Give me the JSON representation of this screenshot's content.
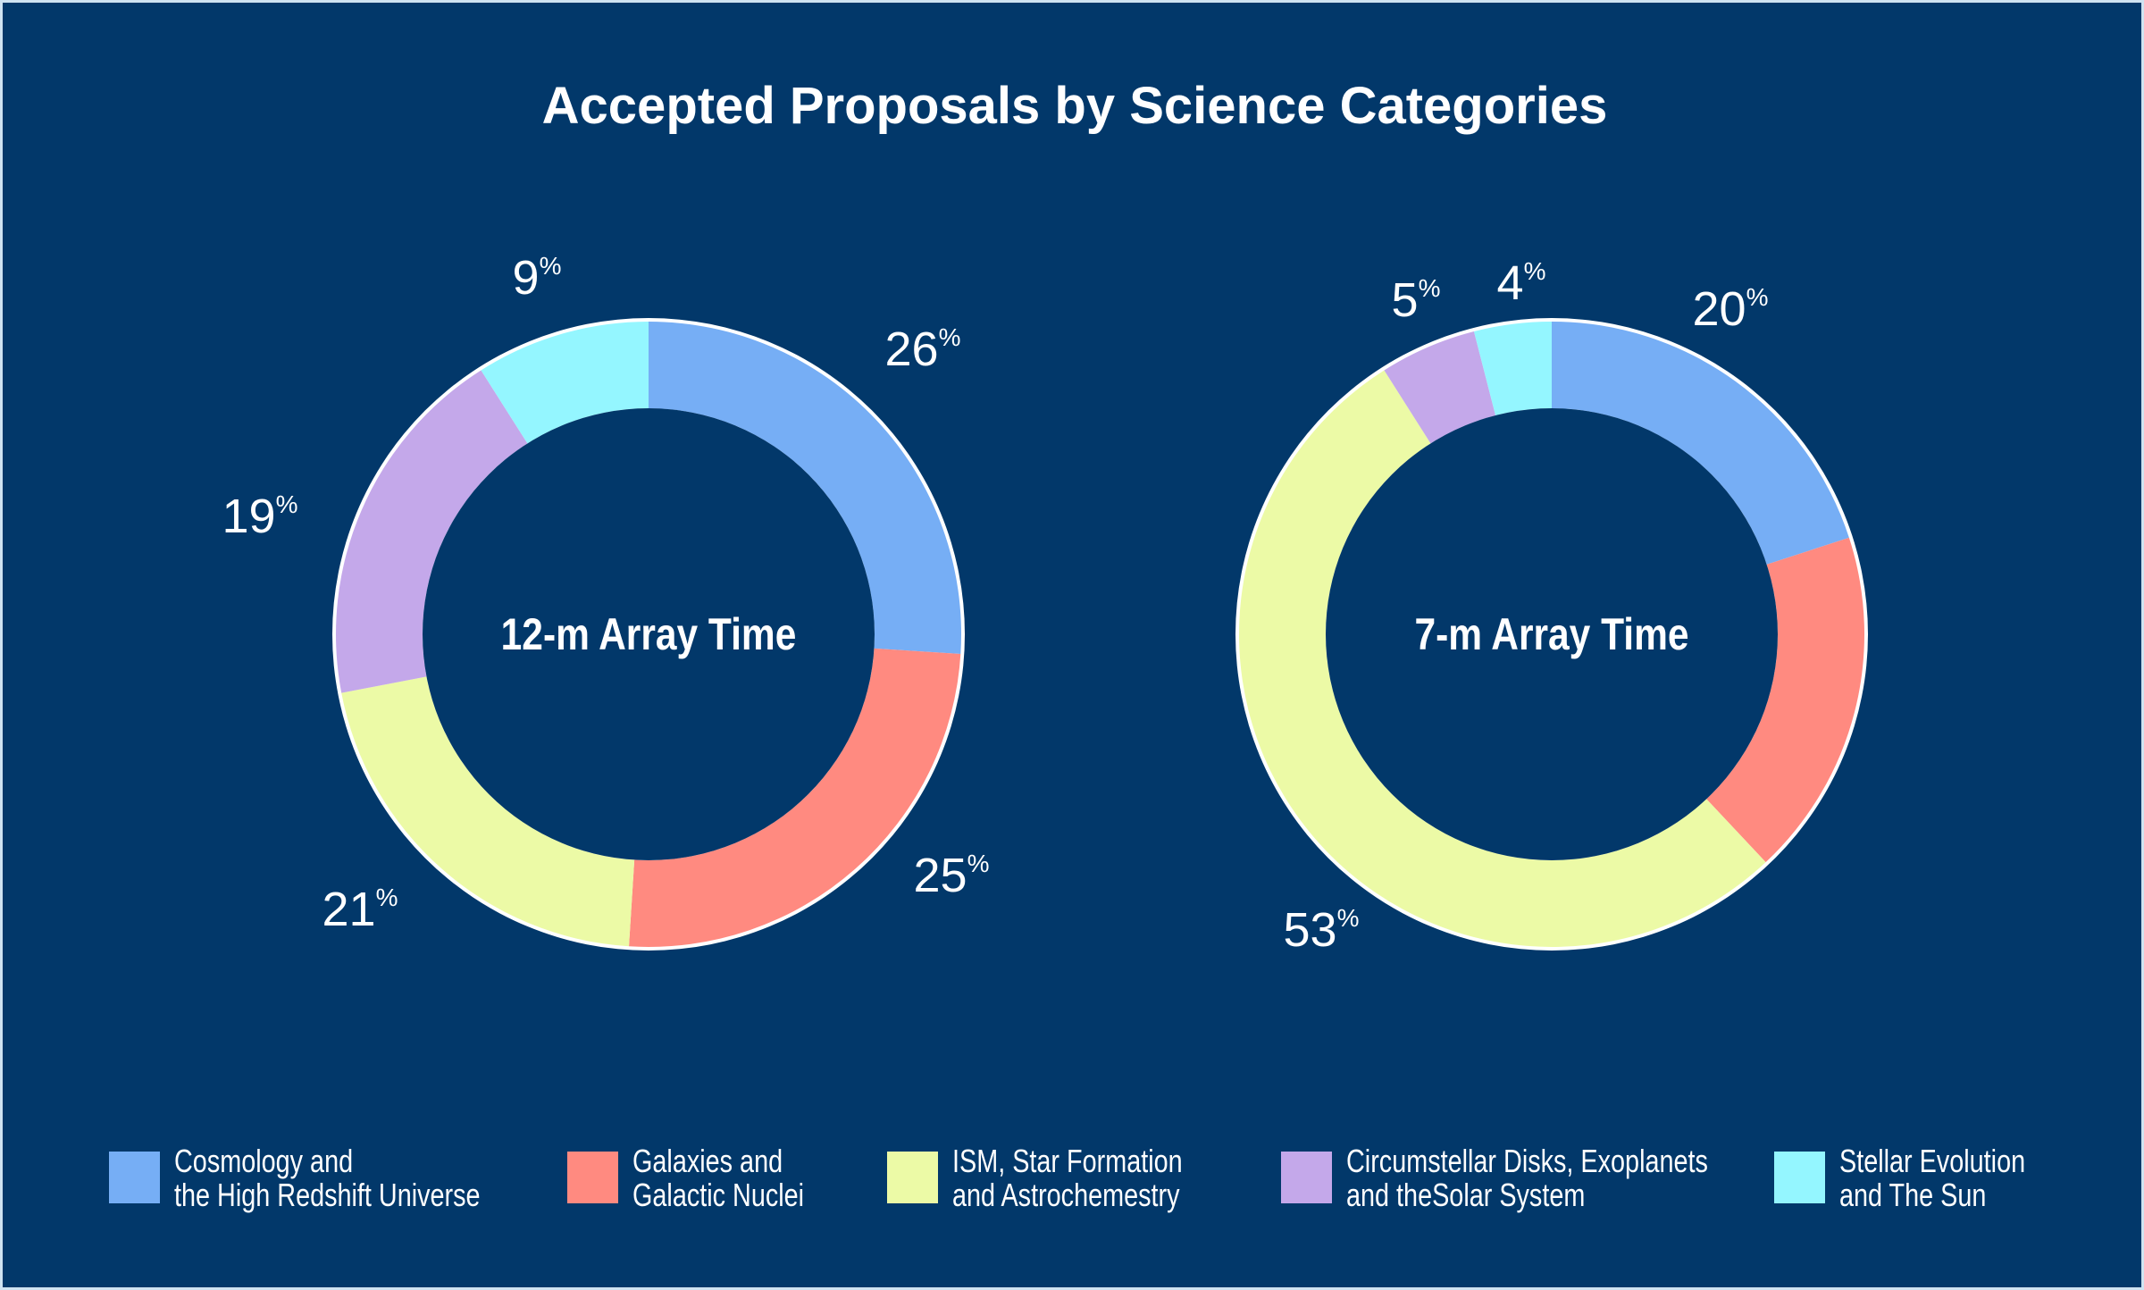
{
  "chart_data": [
    {
      "type": "pie",
      "title": "Accepted Proposals by Science Categories",
      "center_label": "12-m Array Time",
      "categories": [
        "Cosmology and the High Redshift Universe",
        "Galaxies and Galactic Nuclei",
        "ISM, Star Formation and Astrochemestry",
        "Circumstellar Disks, Exoplanets and theSolar System",
        "Stellar Evolution and The Sun"
      ],
      "values": [
        26,
        25,
        21,
        19,
        9
      ],
      "labels": [
        "26",
        "25",
        "21",
        "19",
        "9"
      ],
      "unit": "%",
      "donut": true
    },
    {
      "type": "pie",
      "center_label": "7-m Array Time",
      "categories": [
        "Cosmology and the High Redshift Universe",
        "Galaxies and Galactic Nuclei",
        "ISM, Star Formation and Astrochemestry",
        "Circumstellar Disks, Exoplanets and theSolar System",
        "Stellar Evolution and The Sun"
      ],
      "values": [
        20,
        18,
        53,
        5,
        4
      ],
      "labels": [
        "20",
        null,
        "53",
        "5",
        "4"
      ],
      "unit": "%",
      "donut": true
    }
  ],
  "title": "Accepted Proposals by Science Categories",
  "colors": [
    "#76aef5",
    "#ff8a80",
    "#ecfaa6",
    "#c4a8ea",
    "#94f6ff"
  ],
  "background": "#02386a",
  "legend": [
    {
      "line1": "Cosmology and",
      "line2": "the High Redshift Universe"
    },
    {
      "line1": "Galaxies and",
      "line2": "Galactic Nuclei"
    },
    {
      "line1": "ISM, Star Formation",
      "line2": "and Astrochemestry"
    },
    {
      "line1": "Circumstellar Disks, Exoplanets",
      "line2": "and theSolar System"
    },
    {
      "line1": "Stellar Evolution",
      "line2": "and The Sun"
    }
  ]
}
